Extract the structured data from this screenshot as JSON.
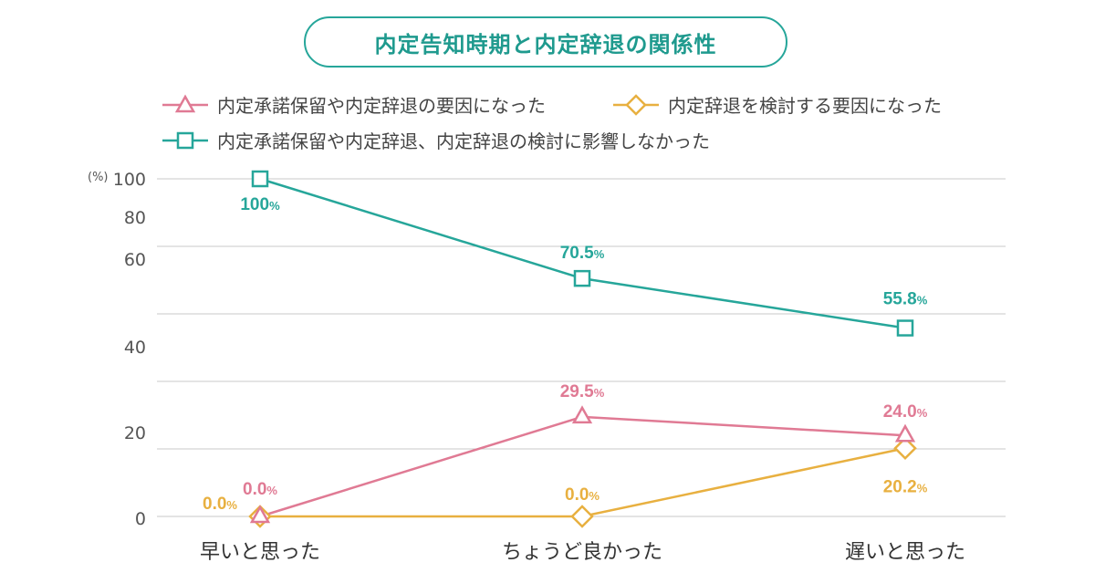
{
  "title": "内定告知時期と内定辞退の関係性",
  "legend": [
    {
      "label": "内定承諾保留や内定辞退の要因になった",
      "marker": "triangle",
      "color": "#e07a94"
    },
    {
      "label": "内定辞退を検討する要因になった",
      "marker": "diamond",
      "color": "#e8b040"
    },
    {
      "label": "内定承諾保留や内定辞退、内定辞退の検討に影響しなかった",
      "marker": "square",
      "color": "#26a69a"
    }
  ],
  "chart_data": {
    "type": "line",
    "categories": [
      "早いと思った",
      "ちょうど良かった",
      "遅いと思った"
    ],
    "y_unit": "(%)",
    "y_tick_labels": [
      "100",
      "80",
      "60",
      "40",
      "20",
      "0"
    ],
    "grid": true,
    "series": [
      {
        "name": "内定承諾保留や内定辞退の要因になった",
        "values": [
          0.0,
          29.5,
          24.0
        ],
        "labels": [
          "0.0",
          "29.5",
          "24.0"
        ],
        "color": "#e07a94",
        "marker": "triangle"
      },
      {
        "name": "内定辞退を検討する要因になった",
        "values": [
          0.0,
          0.0,
          20.2
        ],
        "labels": [
          "0.0",
          "0.0",
          "20.2"
        ],
        "color": "#e8b040",
        "marker": "diamond"
      },
      {
        "name": "内定承諾保留や内定辞退、内定辞退の検討に影響しなかった",
        "values": [
          100,
          70.5,
          55.8
        ],
        "labels": [
          "100",
          "70.5",
          "55.8"
        ],
        "color": "#26a69a",
        "marker": "square"
      }
    ],
    "label_suffix": "%"
  }
}
